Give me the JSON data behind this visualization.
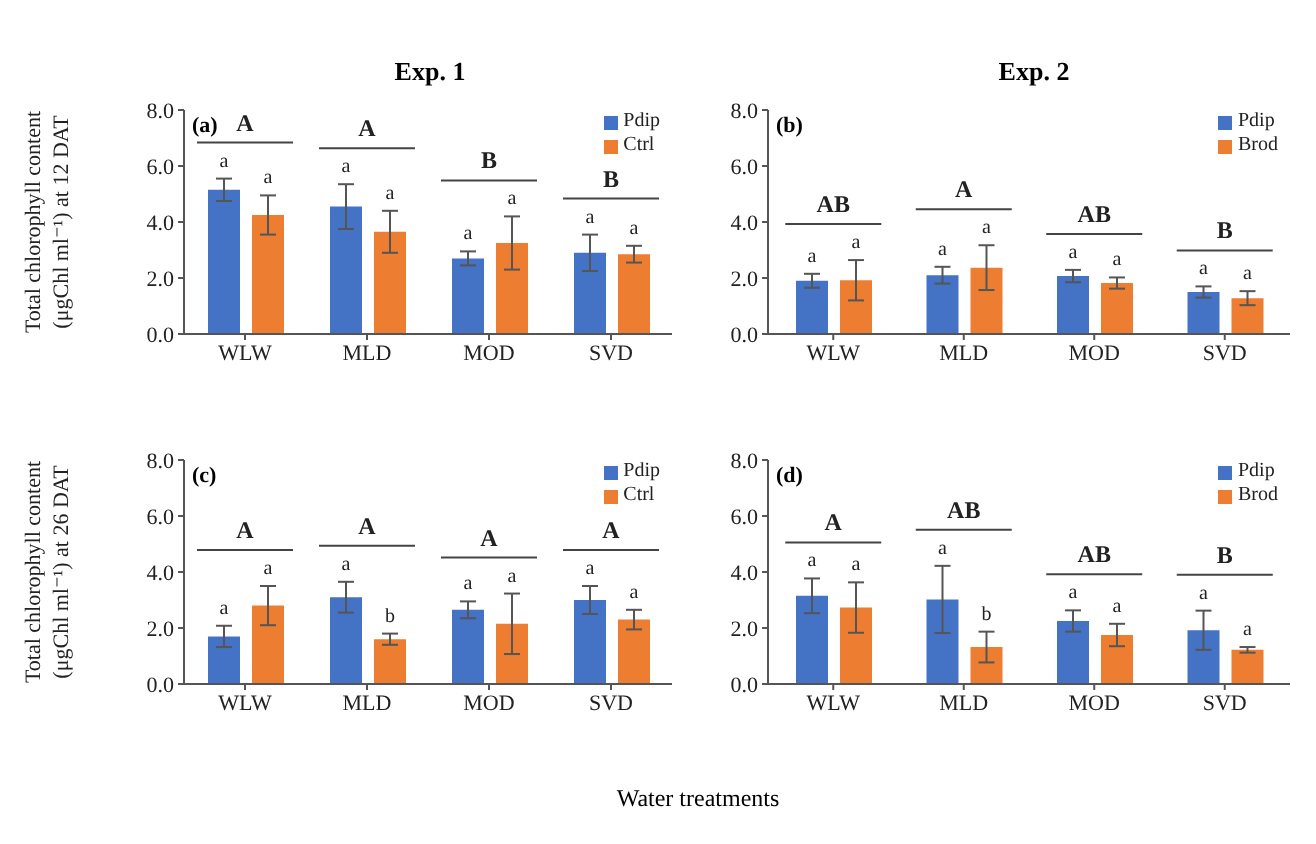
{
  "chart_data": [
    {
      "type": "bar",
      "title": "Exp. 1",
      "ylabel": "Total chlorophyll content\n(μgChl ml⁻¹) at 12 DAT",
      "categories": [
        "WLW",
        "MLD",
        "MOD",
        "SVD"
      ],
      "ylim": [
        0,
        8
      ],
      "yticks": [
        {
          "value": 0,
          "label": "0.0"
        },
        {
          "value": 2,
          "label": "2.0"
        },
        {
          "value": 4,
          "label": "4.0"
        },
        {
          "value": 6,
          "label": "6.0"
        },
        {
          "value": 8,
          "label": "8.0"
        }
      ],
      "grid": false,
      "legend": "top right",
      "series": [
        {
          "name": "Pdip",
          "color": "#4472c4",
          "values": [
            5.15,
            4.55,
            2.7,
            2.9
          ],
          "errors": [
            0.4,
            0.8,
            0.25,
            0.65
          ],
          "value_labels": [
            "a",
            "a",
            "a",
            "a"
          ]
        },
        {
          "name": "Ctrl",
          "color": "#ed7d31",
          "values": [
            4.25,
            3.65,
            3.25,
            2.85
          ],
          "errors": [
            0.7,
            0.75,
            0.95,
            0.3
          ],
          "value_labels": [
            "a",
            "a",
            "a",
            "a"
          ]
        }
      ],
      "annotations": [
        "(a)",
        "A",
        "A",
        "B",
        "B"
      ]
    },
    {
      "type": "bar",
      "title": "Exp. 2",
      "categories": [
        "WLW",
        "MLD",
        "MOD",
        "SVD"
      ],
      "ylim": [
        0,
        8
      ],
      "yticks": [
        {
          "value": 0,
          "label": "0.0"
        },
        {
          "value": 2,
          "label": "2.0"
        },
        {
          "value": 4,
          "label": "4.0"
        },
        {
          "value": 6,
          "label": "6.0"
        },
        {
          "value": 8,
          "label": "8.0"
        }
      ],
      "grid": false,
      "legend": "top right",
      "series": [
        {
          "name": "Pdip",
          "color": "#4472c4",
          "values": [
            1.9,
            2.1,
            2.07,
            1.5
          ],
          "errors": [
            0.25,
            0.3,
            0.22,
            0.2
          ],
          "value_labels": [
            "a",
            "a",
            "a",
            "a"
          ]
        },
        {
          "name": "Brod",
          "color": "#ed7d31",
          "values": [
            1.92,
            2.37,
            1.82,
            1.28
          ],
          "errors": [
            0.72,
            0.8,
            0.2,
            0.25
          ],
          "value_labels": [
            "a",
            "a",
            "a",
            "a"
          ]
        }
      ],
      "annotations": [
        "(b)",
        "AB",
        "A",
        "AB",
        "B"
      ]
    },
    {
      "type": "bar",
      "ylabel": "Total chlorophyll content\n(μgChl ml⁻¹) at 26 DAT",
      "xlabel": "Water treatments",
      "categories": [
        "WLW",
        "MLD",
        "MOD",
        "SVD"
      ],
      "ylim": [
        0,
        8
      ],
      "yticks": [
        {
          "value": 0,
          "label": "0.0"
        },
        {
          "value": 2,
          "label": "2.0"
        },
        {
          "value": 4,
          "label": "4.0"
        },
        {
          "value": 6,
          "label": "6.0"
        },
        {
          "value": 8,
          "label": "8.0"
        }
      ],
      "grid": false,
      "legend": "top right",
      "series": [
        {
          "name": "Pdip",
          "color": "#4472c4",
          "values": [
            1.7,
            3.1,
            2.65,
            3.0
          ],
          "errors": [
            0.38,
            0.55,
            0.3,
            0.5
          ],
          "value_labels": [
            "a",
            "a",
            "a",
            "a"
          ]
        },
        {
          "name": "Ctrl",
          "color": "#ed7d31",
          "values": [
            2.8,
            1.6,
            2.15,
            2.3
          ],
          "errors": [
            0.7,
            0.2,
            1.08,
            0.35
          ],
          "value_labels": [
            "a",
            "b",
            "a",
            "a"
          ]
        }
      ],
      "annotations": [
        "(c)",
        "A",
        "A",
        "A",
        "A"
      ]
    },
    {
      "type": "bar",
      "categories": [
        "WLW",
        "MLD",
        "MOD",
        "SVD"
      ],
      "ylim": [
        0,
        8
      ],
      "yticks": [
        {
          "value": 0,
          "label": "0.0"
        },
        {
          "value": 2,
          "label": "2.0"
        },
        {
          "value": 4,
          "label": "4.0"
        },
        {
          "value": 6,
          "label": "6.0"
        },
        {
          "value": 8,
          "label": "8.0"
        }
      ],
      "grid": false,
      "legend": "top right",
      "series": [
        {
          "name": "Pdip",
          "color": "#4472c4",
          "values": [
            3.15,
            3.02,
            2.25,
            1.92
          ],
          "errors": [
            0.62,
            1.2,
            0.38,
            0.7
          ],
          "value_labels": [
            "a",
            "a",
            "a",
            "a"
          ]
        },
        {
          "name": "Brod",
          "color": "#ed7d31",
          "values": [
            2.73,
            1.32,
            1.75,
            1.22
          ],
          "errors": [
            0.9,
            0.55,
            0.4,
            0.1
          ],
          "value_labels": [
            "a",
            "b",
            "a",
            "a"
          ]
        }
      ],
      "annotations": [
        "(d)",
        "A",
        "AB",
        "AB",
        "B"
      ]
    }
  ]
}
